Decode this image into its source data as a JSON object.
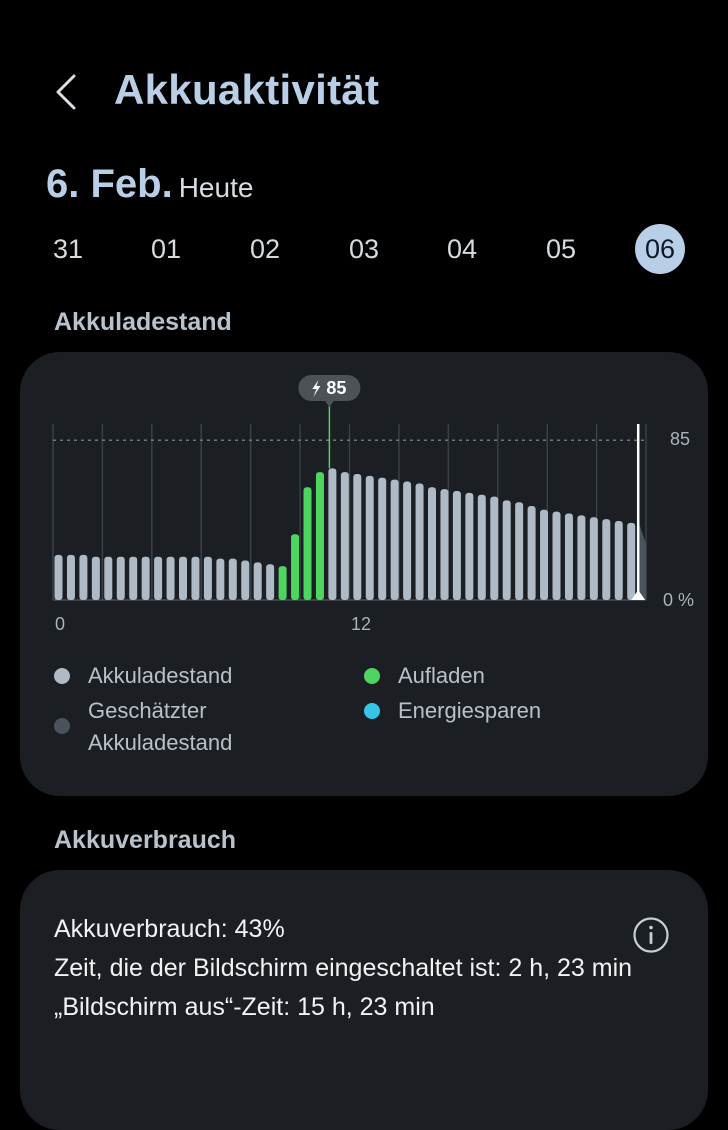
{
  "header": {
    "title": "Akkuaktivität",
    "back_icon": "chevron-left-icon"
  },
  "date": {
    "day": "6. Feb.",
    "relative": "Heute"
  },
  "days": [
    {
      "label": "31",
      "selected": false
    },
    {
      "label": "01",
      "selected": false
    },
    {
      "label": "02",
      "selected": false
    },
    {
      "label": "03",
      "selected": false
    },
    {
      "label": "04",
      "selected": false
    },
    {
      "label": "05",
      "selected": false
    },
    {
      "label": "06",
      "selected": true
    }
  ],
  "battery_section": {
    "label": "Akkuladestand"
  },
  "chart_data": {
    "type": "bar",
    "y_unit": "%",
    "x_ticks": [
      "0",
      "12"
    ],
    "y_ticks": [
      "85",
      "0 %"
    ],
    "reference_line": 85,
    "ylim": [
      0,
      100
    ],
    "grid": true,
    "x_start_hour": 0,
    "hours_per_bar": 0.5,
    "values": [
      24,
      24,
      24,
      23,
      23,
      23,
      23,
      23,
      23,
      23,
      23,
      23,
      23,
      22,
      22,
      21,
      20,
      19,
      18,
      35,
      60,
      68,
      70,
      68,
      67,
      66,
      65,
      64,
      63,
      62,
      60,
      59,
      58,
      57,
      56,
      55,
      53,
      52,
      50,
      48,
      47,
      46,
      45,
      44,
      43,
      42,
      41
    ],
    "status": [
      "level",
      "level",
      "level",
      "level",
      "level",
      "level",
      "level",
      "level",
      "level",
      "level",
      "level",
      "level",
      "level",
      "level",
      "level",
      "level",
      "level",
      "level",
      "charging",
      "charging",
      "charging",
      "charging",
      "level",
      "level",
      "level",
      "level",
      "level",
      "level",
      "level",
      "level",
      "level",
      "level",
      "level",
      "level",
      "level",
      "level",
      "level",
      "level",
      "level",
      "level",
      "level",
      "level",
      "level",
      "level",
      "level",
      "level",
      "level"
    ],
    "estimated": {
      "name": "Geschätzter Akkuladestand",
      "from_value": 42,
      "to_value": 30
    },
    "peak_label": "85",
    "colors": {
      "level": "#aebac5",
      "charging": "#4ed55f",
      "estimated": "#4a525a",
      "power_saving": "#35c6e6",
      "now_line": "#ffffff"
    },
    "legend": [
      {
        "label": "Akkuladestand",
        "color": "#aebac5"
      },
      {
        "label": "Aufladen",
        "color": "#4ed55f"
      },
      {
        "label": "Geschätzter Akkuladestand",
        "color": "#4a525a"
      },
      {
        "label": "Energiesparen",
        "color": "#35c6e6"
      }
    ]
  },
  "usage_section": {
    "label": "Akkuverbrauch",
    "lines": [
      "Akkuverbrauch: 43%",
      "Zeit, die der Bildschirm eingeschaltet ist: 2 h, 23 min",
      "„Bildschirm aus“-Zeit: 15 h, 23 min"
    ],
    "info_icon": "info-icon"
  }
}
